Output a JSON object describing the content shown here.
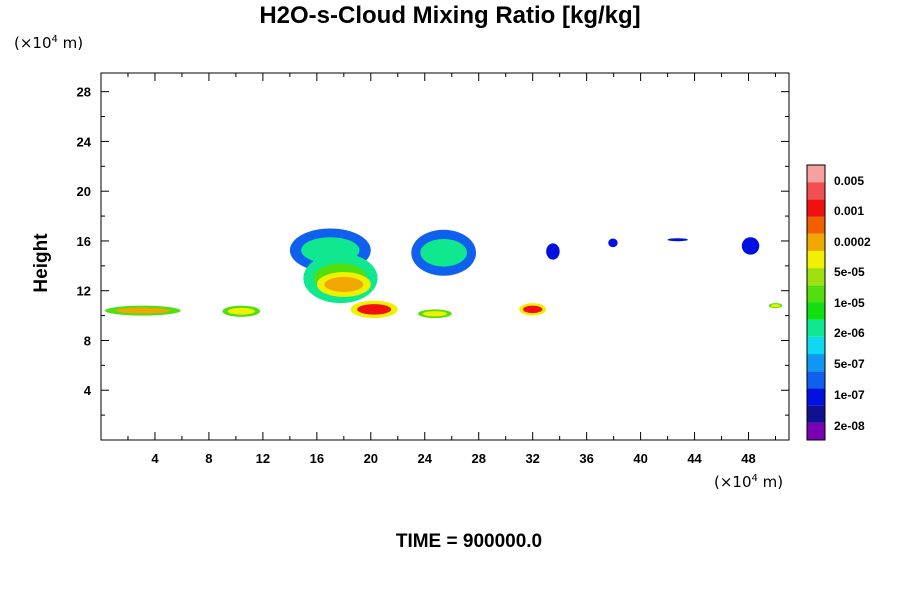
{
  "chart_data": {
    "type": "heatmap",
    "title": "H2O-s-Cloud Mixing Ratio [kg/kg]",
    "ylabel": "Height",
    "xlabel": "",
    "x_unit_label": "(×10⁴ m)",
    "y_unit_label": "(×10⁴ m)",
    "footer": "TIME = 900000.0",
    "xlim": [
      0,
      51
    ],
    "ylim": [
      0,
      29.5
    ],
    "x_ticks": [
      4,
      8,
      12,
      16,
      20,
      24,
      28,
      32,
      36,
      40,
      44,
      48
    ],
    "y_ticks": [
      4,
      8,
      12,
      16,
      20,
      24,
      28
    ],
    "colorbar": {
      "labels": [
        "0.005",
        "0.001",
        "0.0002",
        "5e-05",
        "1e-05",
        "2e-06",
        "5e-07",
        "1e-07",
        "2e-08"
      ],
      "colors": [
        "#7a00b4",
        "#101090",
        "#0010e0",
        "#1060f0",
        "#1098f0",
        "#10d8f0",
        "#10e890",
        "#10e010",
        "#50e010",
        "#a0e010",
        "#f0f000",
        "#f0a800",
        "#f06000",
        "#f01010",
        "#f05050",
        "#f8a0a0"
      ]
    },
    "blobs": [
      {
        "x": [
          0.3,
          5.9
        ],
        "y": [
          10.0,
          10.8
        ],
        "level": "0.0002",
        "edge": "1e-05"
      },
      {
        "x": [
          9.0,
          11.8
        ],
        "y": [
          9.9,
          10.8
        ],
        "level": "5e-05",
        "edge": "1e-05"
      },
      {
        "x": [
          14.0,
          20.0
        ],
        "y": [
          13.5,
          17.0
        ],
        "level": "2e-06",
        "edge": "1e-07"
      },
      {
        "x": [
          15.0,
          20.5
        ],
        "y": [
          11.0,
          15.0
        ],
        "level": "1e-05",
        "edge": "2e-06"
      },
      {
        "x": [
          16.0,
          20.0
        ],
        "y": [
          11.5,
          13.5
        ],
        "level": "0.0002",
        "edge": "5e-05"
      },
      {
        "x": [
          18.5,
          22.0
        ],
        "y": [
          9.8,
          11.2
        ],
        "level": "0.001",
        "edge": "5e-05"
      },
      {
        "x": [
          23.0,
          27.8
        ],
        "y": [
          13.2,
          16.9
        ],
        "level": "2e-06",
        "edge": "1e-07"
      },
      {
        "x": [
          23.5,
          26.0
        ],
        "y": [
          9.8,
          10.5
        ],
        "level": "5e-05",
        "edge": "1e-05"
      },
      {
        "x": [
          31.0,
          33.0
        ],
        "y": [
          10.0,
          11.0
        ],
        "level": "0.001",
        "edge": "5e-05"
      },
      {
        "x": [
          33.0,
          34.0
        ],
        "y": [
          14.5,
          15.8
        ],
        "level": "2e-08",
        "edge": "2e-08"
      },
      {
        "x": [
          37.6,
          38.3
        ],
        "y": [
          15.5,
          16.2
        ],
        "level": "2e-08",
        "edge": "2e-08"
      },
      {
        "x": [
          42.0,
          43.5
        ],
        "y": [
          16.0,
          16.2
        ],
        "level": "2e-08",
        "edge": "2e-08"
      },
      {
        "x": [
          47.5,
          48.8
        ],
        "y": [
          14.9,
          16.3
        ],
        "level": "2e-08",
        "edge": "2e-08"
      },
      {
        "x": [
          49.5,
          50.5
        ],
        "y": [
          10.6,
          11.0
        ],
        "level": "5e-05",
        "edge": "1e-05"
      }
    ]
  }
}
